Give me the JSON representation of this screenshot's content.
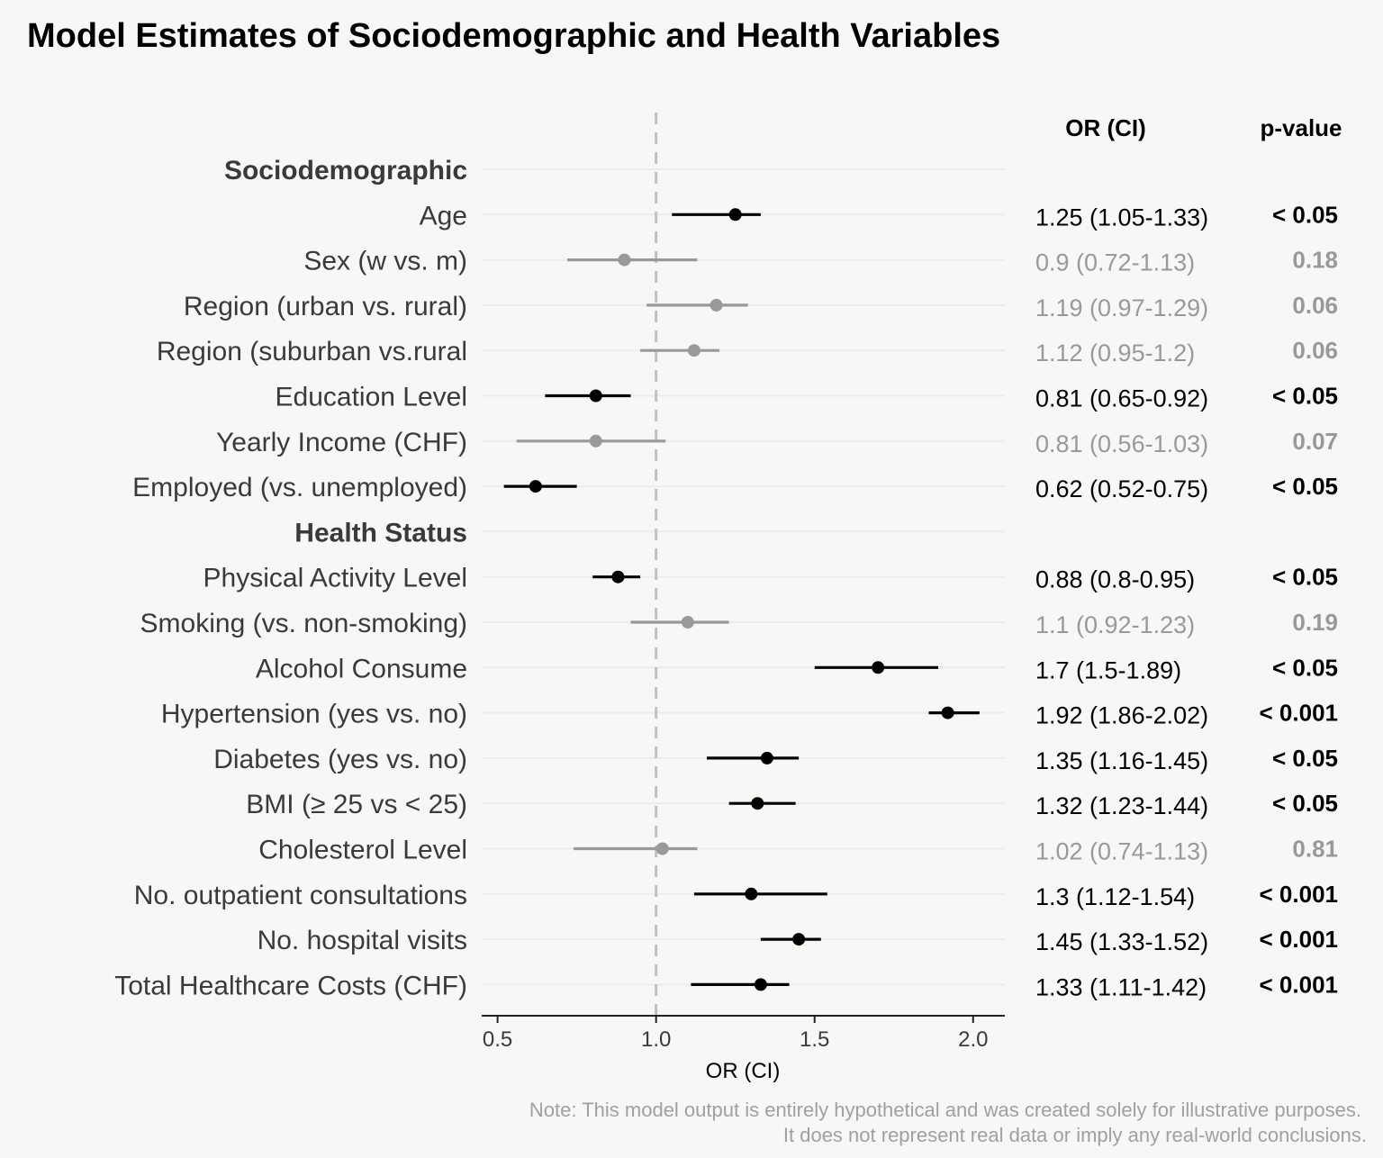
{
  "chart_data": {
    "type": "forest",
    "title": "Model Estimates of Sociodemographic and Health Variables",
    "xlabel": "OR (CI)",
    "xlim": [
      0.45,
      2.1
    ],
    "xticks": [
      0.5,
      1.0,
      1.5,
      2.0
    ],
    "xtick_labels": [
      "0.5",
      "1.0",
      "1.5",
      "2.0"
    ],
    "reference_line": 1.0,
    "column_headers": {
      "or": "OR (CI)",
      "p": "p-value"
    },
    "colors": {
      "significant": "#000000",
      "non_significant": "#999999",
      "reference": "#c0c0c0"
    },
    "rows": [
      {
        "type": "group",
        "label": "Sociodemographic"
      },
      {
        "type": "var",
        "label": "Age",
        "or": 1.25,
        "lo": 1.05,
        "hi": 1.33,
        "or_text": "1.25 (1.05-1.33)",
        "p": "< 0.05",
        "sig": true
      },
      {
        "type": "var",
        "label": "Sex (w vs. m)",
        "or": 0.9,
        "lo": 0.72,
        "hi": 1.13,
        "or_text": "0.9 (0.72-1.13)",
        "p": "0.18",
        "sig": false
      },
      {
        "type": "var",
        "label": "Region (urban vs. rural)",
        "or": 1.19,
        "lo": 0.97,
        "hi": 1.29,
        "or_text": "1.19 (0.97-1.29)",
        "p": "0.06",
        "sig": false
      },
      {
        "type": "var",
        "label": "Region (suburban vs.rural",
        "or": 1.12,
        "lo": 0.95,
        "hi": 1.2,
        "or_text": "1.12 (0.95-1.2)",
        "p": "0.06",
        "sig": false
      },
      {
        "type": "var",
        "label": "Education Level",
        "or": 0.81,
        "lo": 0.65,
        "hi": 0.92,
        "or_text": "0.81 (0.65-0.92)",
        "p": "< 0.05",
        "sig": true
      },
      {
        "type": "var",
        "label": "Yearly Income (CHF)",
        "or": 0.81,
        "lo": 0.56,
        "hi": 1.03,
        "or_text": "0.81 (0.56-1.03)",
        "p": "0.07",
        "sig": false
      },
      {
        "type": "var",
        "label": "Employed (vs. unemployed)",
        "or": 0.62,
        "lo": 0.52,
        "hi": 0.75,
        "or_text": "0.62 (0.52-0.75)",
        "p": "< 0.05",
        "sig": true
      },
      {
        "type": "group",
        "label": "Health Status"
      },
      {
        "type": "var",
        "label": "Physical Activity Level",
        "or": 0.88,
        "lo": 0.8,
        "hi": 0.95,
        "or_text": "0.88 (0.8-0.95)",
        "p": "< 0.05",
        "sig": true
      },
      {
        "type": "var",
        "label": "Smoking (vs. non-smoking)",
        "or": 1.1,
        "lo": 0.92,
        "hi": 1.23,
        "or_text": "1.1 (0.92-1.23)",
        "p": "0.19",
        "sig": false
      },
      {
        "type": "var",
        "label": "Alcohol Consume",
        "or": 1.7,
        "lo": 1.5,
        "hi": 1.89,
        "or_text": "1.7 (1.5-1.89)",
        "p": "< 0.05",
        "sig": true
      },
      {
        "type": "var",
        "label": "Hypertension (yes vs. no)",
        "or": 1.92,
        "lo": 1.86,
        "hi": 2.02,
        "or_text": "1.92 (1.86-2.02)",
        "p": "< 0.001",
        "sig": true
      },
      {
        "type": "var",
        "label": "Diabetes (yes vs. no)",
        "or": 1.35,
        "lo": 1.16,
        "hi": 1.45,
        "or_text": "1.35 (1.16-1.45)",
        "p": "< 0.05",
        "sig": true
      },
      {
        "type": "var",
        "label": "BMI (≥ 25 vs < 25)",
        "or": 1.32,
        "lo": 1.23,
        "hi": 1.44,
        "or_text": "1.32 (1.23-1.44)",
        "p": "< 0.05",
        "sig": true
      },
      {
        "type": "var",
        "label": "Cholesterol Level",
        "or": 1.02,
        "lo": 0.74,
        "hi": 1.13,
        "or_text": "1.02 (0.74-1.13)",
        "p": "0.81",
        "sig": false
      },
      {
        "type": "var",
        "label": "No. outpatient consultations",
        "or": 1.3,
        "lo": 1.12,
        "hi": 1.54,
        "or_text": "1.3 (1.12-1.54)",
        "p": "< 0.001",
        "sig": true
      },
      {
        "type": "var",
        "label": "No. hospital visits",
        "or": 1.45,
        "lo": 1.33,
        "hi": 1.52,
        "or_text": "1.45 (1.33-1.52)",
        "p": "< 0.001",
        "sig": true
      },
      {
        "type": "var",
        "label": "Total Healthcare Costs (CHF)",
        "or": 1.33,
        "lo": 1.11,
        "hi": 1.42,
        "or_text": "1.33 (1.11-1.42)",
        "p": "< 0.001",
        "sig": true
      }
    ],
    "note": [
      "Note: This model output is entirely hypothetical and was created solely for illustrative purposes.",
      "It does not represent real data or imply any real-world conclusions."
    ]
  }
}
